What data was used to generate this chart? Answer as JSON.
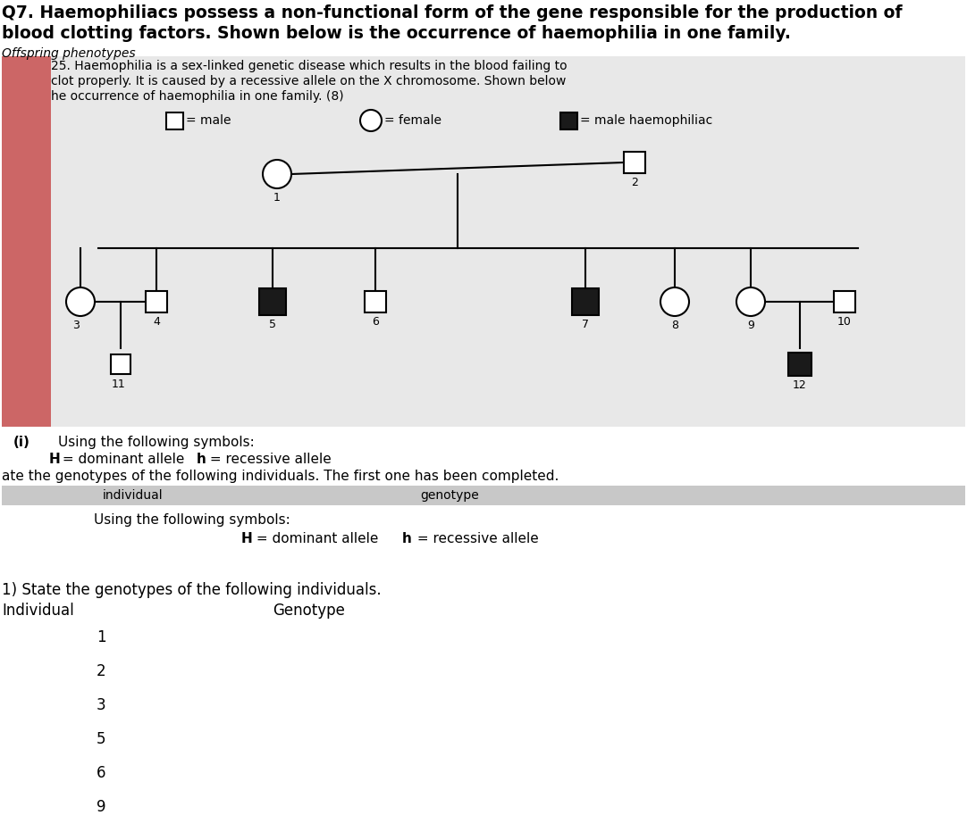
{
  "title_line1": "Q7. Haemophiliacs possess a non-functional form of the gene responsible for the production of",
  "title_line2": "blood clotting factors. Shown below is the occurrence of haemophilia in one family.",
  "subtitle": "Offspring phenotypes",
  "q25_text_line1": "25. Haemophilia is a sex-linked genetic disease which results in the blood failing to",
  "q25_text_line2": "clot properly. It is caused by a recessive allele on the X chromosome. Shown below",
  "q25_text_line3": "he occurrence of haemophilia in one family. (8)",
  "legend_male": "= male",
  "legend_female": "= female",
  "legend_haem": "= male haemophiliac",
  "qi_text_a": "(i)",
  "qi_text_b": "Using the following symbols:",
  "allele_text_bold": "H",
  "allele_text_mid": " = dominant allele   ",
  "allele_text_bold2": "h",
  "allele_text_end": " = recessive allele",
  "ate_text": "ate the genotypes of the following individuals. The first one has been completed.",
  "individual_header": "individual",
  "genotype_header": "genotype",
  "using_symbols": "Using the following symbols:",
  "H_dominant_text": "H = dominant allele   h = recessive allele",
  "state_text": "1) State the genotypes of the following individuals.",
  "individual_header2": "Individual",
  "genotype_header2": "Genotype",
  "individuals": [
    "1",
    "2",
    "3",
    "5",
    "6",
    "9"
  ],
  "bg_color": "#ffffff",
  "text_color": "#000000",
  "haem_color": "#1a1a1a",
  "gray_bg": "#e8e8e8",
  "pink_color": "#d08080"
}
